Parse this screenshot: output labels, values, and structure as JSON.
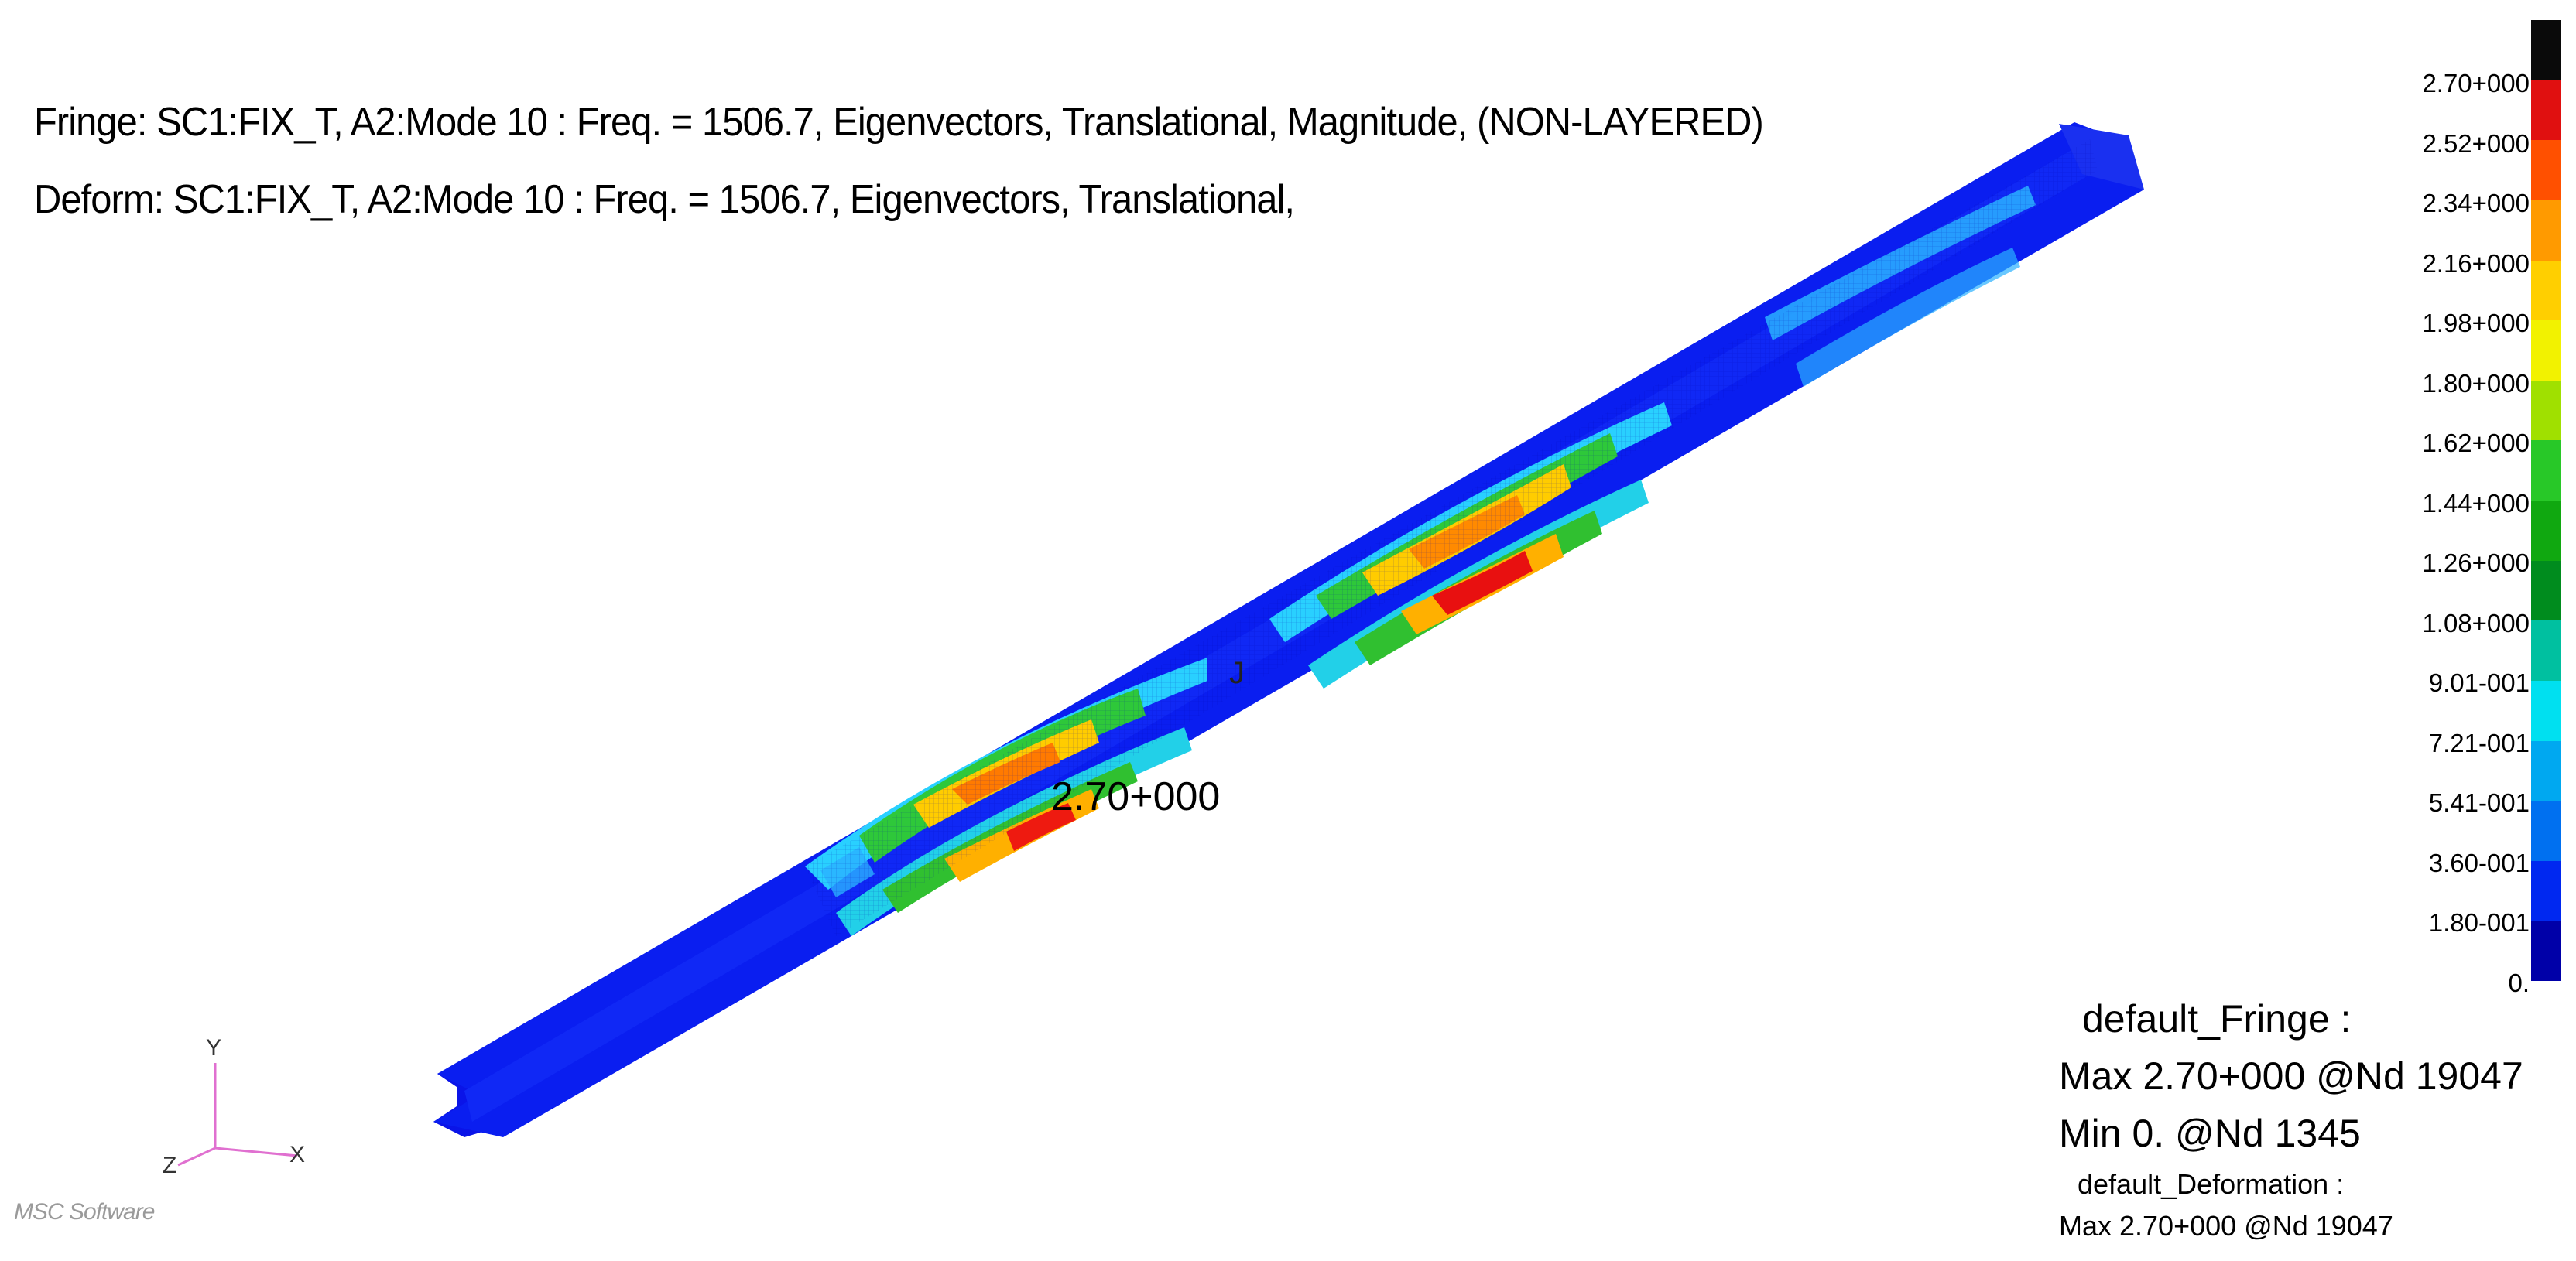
{
  "titles": {
    "fringe": "Fringe: SC1:FIX_T, A2:Mode 10 : Freq. = 1506.7, Eigenvectors, Translational, Magnitude, (NON-LAYERED)",
    "deform": "Deform: SC1:FIX_T, A2:Mode 10 : Freq. = 1506.7, Eigenvectors, Translational,"
  },
  "legend": {
    "ticks": [
      "2.70+000",
      "2.52+000",
      "2.34+000",
      "2.16+000",
      "1.98+000",
      "1.80+000",
      "1.62+000",
      "1.44+000",
      "1.26+000",
      "1.08+000",
      "9.01-001",
      "7.21-001",
      "5.41-001",
      "3.60-001",
      "1.80-001",
      "0."
    ],
    "colors": [
      "#0a0a0a",
      "#e01010",
      "#ff5000",
      "#ff9a00",
      "#ffcf00",
      "#f2f200",
      "#a0e000",
      "#28c828",
      "#10a810",
      "#008c1e",
      "#00c0a0",
      "#00e0f0",
      "#00a8f0",
      "#0070f0",
      "#0028f0",
      "#0000a8"
    ]
  },
  "info": {
    "fringe_title": "default_Fringe :",
    "fringe_max": "Max 2.70+000 @Nd 19047",
    "fringe_min": "Min  0. @Nd 1345",
    "deform_title": "default_Deformation :",
    "deform_max": "Max 2.70+000 @Nd 19047"
  },
  "annotations": {
    "max_label": "2.70+000",
    "node_mark": "J"
  },
  "axes": {
    "y": "Y",
    "x": "X",
    "z": "Z"
  },
  "logo": "MSC Software"
}
